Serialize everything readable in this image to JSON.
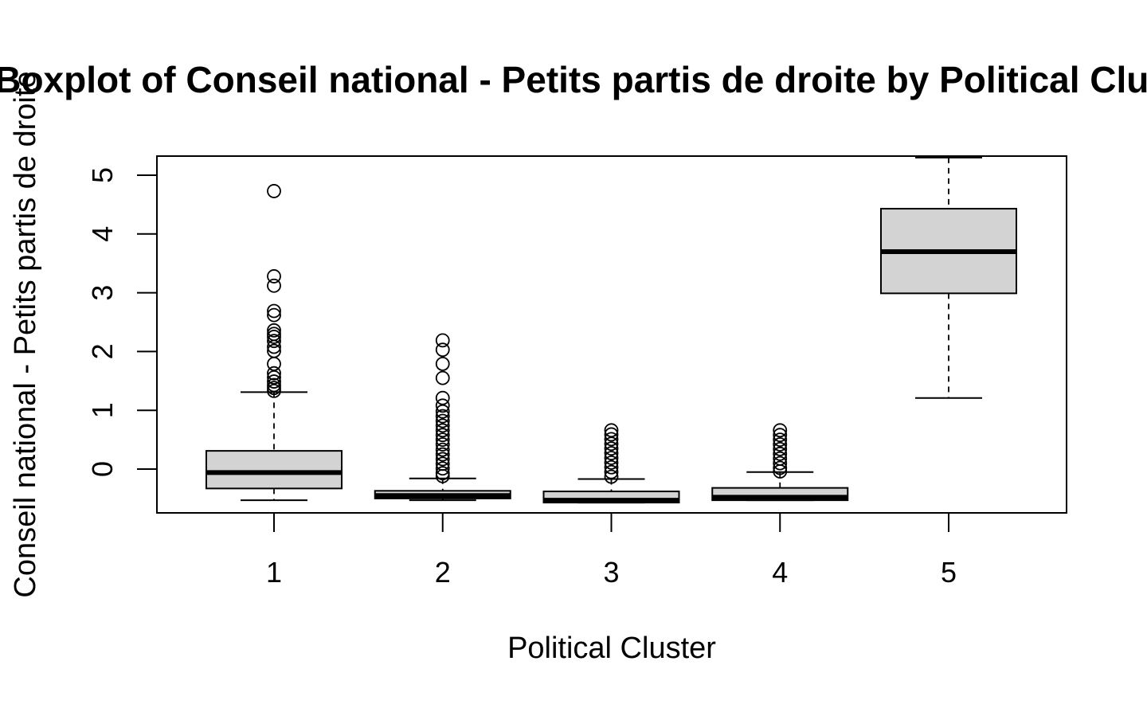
{
  "chart_data": {
    "type": "boxplot",
    "title": "Boxplot of Conseil national - Petits partis de droite by Political Cluster",
    "xlabel": "Political Cluster",
    "ylabel": "Conseil national - Petits partis de droite",
    "categories": [
      "1",
      "2",
      "3",
      "4",
      "5"
    ],
    "y_ticks": [
      0,
      1,
      2,
      3,
      4,
      5
    ],
    "ylim": [
      -0.75,
      5.3
    ],
    "box_fill": "#d3d3d3",
    "boxes": [
      {
        "category": "1",
        "whisker_low": -0.53,
        "q1": -0.33,
        "median": -0.06,
        "q3": 0.31,
        "whisker_high": 1.31,
        "outliers": [
          4.73,
          3.28,
          3.12,
          2.69,
          2.62,
          2.36,
          2.3,
          2.25,
          2.18,
          2.08,
          2.01,
          1.79,
          1.63,
          1.56,
          1.49,
          1.43,
          1.38,
          1.33
        ]
      },
      {
        "category": "2",
        "whisker_low": -0.53,
        "q1": -0.5,
        "median": -0.45,
        "q3": -0.37,
        "whisker_high": -0.16,
        "outliers": [
          2.19,
          2.03,
          1.79,
          1.55,
          1.21,
          1.08,
          0.98,
          0.9,
          0.82,
          0.74,
          0.66,
          0.58,
          0.5,
          0.42,
          0.33,
          0.25,
          0.17,
          0.09,
          0.01,
          -0.07,
          -0.12
        ]
      },
      {
        "category": "3",
        "whisker_low": -0.57,
        "q1": -0.57,
        "median": -0.53,
        "q3": -0.38,
        "whisker_high": -0.17,
        "outliers": [
          0.66,
          0.59,
          0.51,
          0.43,
          0.35,
          0.27,
          0.19,
          0.11,
          0.03,
          -0.05,
          -0.13
        ]
      },
      {
        "category": "4",
        "whisker_low": -0.53,
        "q1": -0.53,
        "median": -0.48,
        "q3": -0.32,
        "whisker_high": -0.05,
        "outliers": [
          0.66,
          0.58,
          0.5,
          0.42,
          0.34,
          0.26,
          0.18,
          0.1,
          0.02,
          -0.04
        ]
      },
      {
        "category": "5",
        "whisker_low": 1.21,
        "q1": 2.99,
        "median": 3.7,
        "q3": 4.43,
        "whisker_high": 5.3,
        "outliers": []
      }
    ]
  }
}
